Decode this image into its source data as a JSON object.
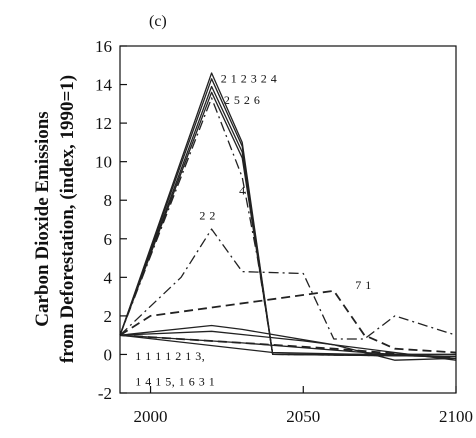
{
  "chart_data": {
    "type": "line",
    "panel_label": "(c)",
    "title": "",
    "xlabel": "",
    "ylabel_line1": "Carbon Dioxide Emissions",
    "ylabel_line2": "from Deforestation, (index, 1990=1)",
    "xlim": [
      1990,
      2100
    ],
    "ylim": [
      -2,
      16
    ],
    "x_ticks": [
      2000,
      2050,
      2100
    ],
    "y_ticks": [
      -2,
      0,
      2,
      4,
      6,
      8,
      10,
      12,
      14,
      16
    ],
    "grid": false,
    "series": [
      {
        "style": "solid",
        "x": [
          1990,
          2020,
          2030,
          2040,
          2100
        ],
        "y": [
          1,
          14.6,
          11,
          0,
          0
        ]
      },
      {
        "style": "solid",
        "x": [
          1990,
          2020,
          2030,
          2040,
          2100
        ],
        "y": [
          1,
          14.3,
          10.8,
          0,
          0
        ]
      },
      {
        "style": "solid",
        "x": [
          1990,
          2020,
          2030,
          2040,
          2100
        ],
        "y": [
          1,
          13.9,
          10.5,
          0,
          -0.1
        ]
      },
      {
        "style": "solid",
        "x": [
          1990,
          2020,
          2030,
          2040,
          2100
        ],
        "y": [
          1,
          13.6,
          10.2,
          0,
          -0.1
        ]
      },
      {
        "style": "dashdot",
        "x": [
          1990,
          2020,
          2030,
          2035,
          2040,
          2100
        ],
        "y": [
          1,
          13.3,
          9.2,
          5,
          0,
          -0.1
        ]
      },
      {
        "style": "dashdot",
        "x": [
          1990,
          2010,
          2020,
          2030,
          2050,
          2060,
          2070,
          2080,
          2100
        ],
        "y": [
          1,
          4,
          6.5,
          4.3,
          4.2,
          0.8,
          0.8,
          2.0,
          1.0
        ]
      },
      {
        "style": "dashed",
        "x": [
          1990,
          2000,
          2060,
          2070,
          2080,
          2100
        ],
        "y": [
          1,
          2,
          3.3,
          1.0,
          0.3,
          0.1
        ]
      },
      {
        "style": "solid",
        "x": [
          1990,
          2020,
          2030,
          2060,
          2080,
          2100
        ],
        "y": [
          1,
          1.5,
          1.3,
          0.5,
          -0.3,
          -0.2
        ]
      },
      {
        "style": "solid",
        "x": [
          1990,
          2020,
          2050,
          2100
        ],
        "y": [
          1,
          1.2,
          0.7,
          -0.3
        ]
      },
      {
        "style": "solid",
        "x": [
          1990,
          2030,
          2070,
          2100
        ],
        "y": [
          1,
          0.6,
          0.1,
          -0.2
        ]
      },
      {
        "style": "solid",
        "x": [
          1990,
          2040,
          2100
        ],
        "y": [
          1,
          0.1,
          -0.1
        ]
      },
      {
        "style": "dashed",
        "x": [
          1990,
          2060,
          2100
        ],
        "y": [
          1,
          0.3,
          -0.2
        ]
      }
    ],
    "annotations": [
      {
        "text": "2 1  2 3  2 4",
        "x": 2023,
        "y": 14.1
      },
      {
        "text": "2 5  2 6",
        "x": 2024,
        "y": 13.0
      },
      {
        "text": "4",
        "x": 2029,
        "y": 8.3
      },
      {
        "text": "2 2",
        "x": 2016,
        "y": 7.0
      },
      {
        "text": "7 1",
        "x": 2067,
        "y": 3.4
      },
      {
        "text": "1 1  1 1  2  1 3,",
        "x": 1995,
        "y": -0.3
      },
      {
        "text": "1 4  1 5, 1 6   3 1",
        "x": 1995,
        "y": -1.6
      }
    ]
  }
}
